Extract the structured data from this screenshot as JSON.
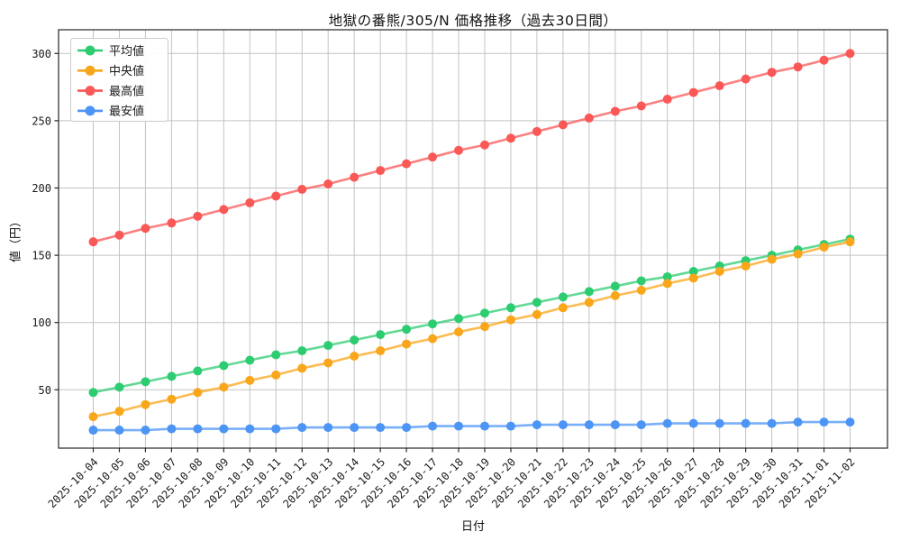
{
  "chart_data": {
    "type": "line",
    "title": "地獄の番熊/305/N 価格推移（過去30日間）",
    "xlabel": "日付",
    "ylabel": "値（円）",
    "legend_position": "upper-left",
    "grid": true,
    "yticks": [
      50,
      100,
      150,
      200,
      250,
      300
    ],
    "ylim": [
      6,
      318
    ],
    "x": [
      "2025-10-04",
      "2025-10-05",
      "2025-10-06",
      "2025-10-07",
      "2025-10-08",
      "2025-10-09",
      "2025-10-10",
      "2025-10-11",
      "2025-10-12",
      "2025-10-13",
      "2025-10-14",
      "2025-10-15",
      "2025-10-16",
      "2025-10-17",
      "2025-10-18",
      "2025-10-19",
      "2025-10-20",
      "2025-10-21",
      "2025-10-22",
      "2025-10-23",
      "2025-10-24",
      "2025-10-25",
      "2025-10-26",
      "2025-10-27",
      "2025-10-28",
      "2025-10-29",
      "2025-10-30",
      "2025-10-31",
      "2025-11-01",
      "2025-11-02"
    ],
    "series": [
      {
        "name": "平均値",
        "color": "#2ecc71",
        "values": [
          48,
          52,
          56,
          60,
          64,
          68,
          72,
          76,
          79,
          83,
          87,
          91,
          95,
          99,
          103,
          107,
          111,
          115,
          119,
          123,
          127,
          131,
          134,
          138,
          142,
          146,
          150,
          154,
          158,
          162
        ]
      },
      {
        "name": "中央値",
        "color": "#f9a61a",
        "values": [
          30,
          34,
          39,
          43,
          48,
          52,
          57,
          61,
          66,
          70,
          75,
          79,
          84,
          88,
          93,
          97,
          102,
          106,
          111,
          115,
          120,
          124,
          129,
          133,
          138,
          142,
          147,
          151,
          156,
          160
        ]
      },
      {
        "name": "最高値",
        "color": "#fa5757",
        "values": [
          160,
          165,
          170,
          174,
          179,
          184,
          189,
          194,
          199,
          203,
          208,
          213,
          218,
          223,
          228,
          232,
          237,
          242,
          247,
          252,
          257,
          261,
          266,
          271,
          276,
          281,
          286,
          290,
          295,
          300
        ]
      },
      {
        "name": "最安値",
        "color": "#4c94f5",
        "values": [
          20,
          20,
          20,
          21,
          21,
          21,
          21,
          21,
          22,
          22,
          22,
          22,
          22,
          23,
          23,
          23,
          23,
          24,
          24,
          24,
          24,
          24,
          25,
          25,
          25,
          25,
          25,
          26,
          26,
          26
        ]
      }
    ],
    "colors": {
      "grid": "#c3c3c3",
      "spine": "#262626",
      "legend_border": "#cccccc",
      "background": "#ffffff"
    }
  }
}
